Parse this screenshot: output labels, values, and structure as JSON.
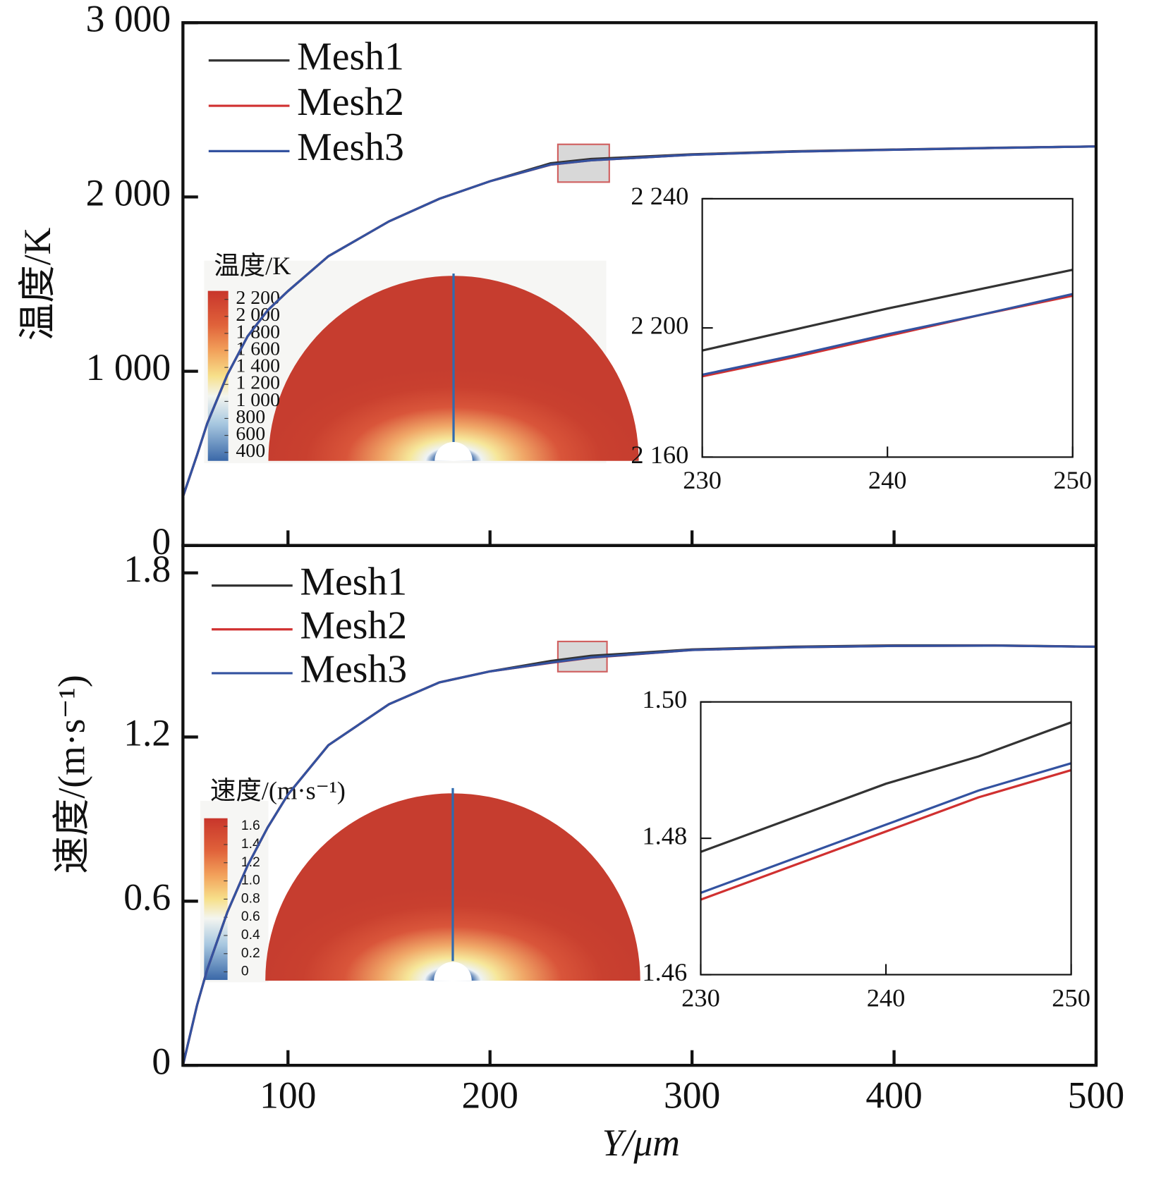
{
  "chart_data": [
    {
      "type": "line",
      "ylabel": "温度/K",
      "legend": "upper left",
      "x": [
        48,
        55,
        60,
        70,
        80,
        90,
        100,
        120,
        150,
        175,
        200,
        230,
        250,
        300,
        350,
        400,
        450,
        500
      ],
      "series": [
        {
          "name": "Mesh1",
          "color": "#333333",
          "values": [
            280,
            520,
            700,
            980,
            1200,
            1350,
            1460,
            1660,
            1860,
            1990,
            2090,
            2193,
            2218,
            2245,
            2262,
            2272,
            2282,
            2290
          ]
        },
        {
          "name": "Mesh2",
          "color": "#d03030",
          "values": [
            280,
            520,
            700,
            980,
            1200,
            1350,
            1460,
            1660,
            1860,
            1990,
            2090,
            2185,
            2210,
            2242,
            2260,
            2271,
            2281,
            2290
          ]
        },
        {
          "name": "Mesh3",
          "color": "#3352a0",
          "values": [
            280,
            520,
            700,
            980,
            1200,
            1350,
            1460,
            1660,
            1860,
            1990,
            2090,
            2186,
            2210,
            2242,
            2260,
            2271,
            2281,
            2290
          ]
        }
      ],
      "xlim": [
        48,
        500
      ],
      "xticks": [
        100,
        200,
        300,
        400,
        500
      ],
      "ylim": [
        0,
        3000
      ],
      "yticks": [
        0,
        {
          "value": 1000,
          "label": "1 000"
        },
        {
          "value": 2000,
          "label": "2 000"
        },
        {
          "value": 3000,
          "label": "3 000"
        }
      ],
      "colorbar": {
        "title": "温度/K",
        "ticks": [
          {
            "value": 2200,
            "label": "2 200"
          },
          {
            "value": 2000,
            "label": "2 000"
          },
          {
            "value": 1800,
            "label": "1 800"
          },
          {
            "value": 1600,
            "label": "1 600"
          },
          {
            "value": 1400,
            "label": "1 400"
          },
          {
            "value": 1200,
            "label": "1 200"
          },
          {
            "value": 1000,
            "label": "1 000"
          },
          800,
          600,
          400
        ]
      }
    },
    {
      "type": "line",
      "x": [
        230,
        235,
        240,
        245,
        250
      ],
      "series": [
        {
          "color": "#333333",
          "values": [
            2193,
            2199.5,
            2206,
            2212,
            2218
          ]
        },
        {
          "color": "#d03030",
          "values": [
            2185,
            2191,
            2197.5,
            2204,
            2210
          ]
        },
        {
          "color": "#3352a0",
          "values": [
            2185.5,
            2191.5,
            2198,
            2204,
            2210.5
          ]
        }
      ],
      "xlim": [
        230,
        250
      ],
      "xticks": [
        230,
        240,
        250
      ],
      "ylim": [
        2160,
        2240
      ],
      "yticks": [
        {
          "value": 2160,
          "label": "2 160"
        },
        {
          "value": 2200,
          "label": "2 200"
        },
        {
          "value": 2240,
          "label": "2 240"
        }
      ]
    },
    {
      "type": "line",
      "ylabel": "速度/(m·s⁻¹)",
      "xlabel": "Y/μm",
      "legend": "upper left",
      "x": [
        48,
        55,
        60,
        70,
        80,
        90,
        100,
        120,
        150,
        175,
        200,
        230,
        250,
        300,
        350,
        400,
        450,
        500
      ],
      "series": [
        {
          "name": "Mesh1",
          "color": "#333333",
          "values": [
            0,
            0.22,
            0.35,
            0.56,
            0.73,
            0.87,
            0.99,
            1.17,
            1.32,
            1.4,
            1.44,
            1.478,
            1.497,
            1.52,
            1.53,
            1.535,
            1.535,
            1.53
          ]
        },
        {
          "name": "Mesh2",
          "color": "#d03030",
          "values": [
            0,
            0.22,
            0.35,
            0.56,
            0.73,
            0.87,
            0.99,
            1.17,
            1.32,
            1.4,
            1.44,
            1.471,
            1.49,
            1.518,
            1.528,
            1.533,
            1.534,
            1.53
          ]
        },
        {
          "name": "Mesh3",
          "color": "#3352a0",
          "values": [
            0,
            0.22,
            0.35,
            0.56,
            0.73,
            0.87,
            0.99,
            1.17,
            1.32,
            1.4,
            1.44,
            1.472,
            1.491,
            1.518,
            1.528,
            1.533,
            1.534,
            1.53
          ]
        }
      ],
      "xlim": [
        48,
        500
      ],
      "xticks": [
        100,
        200,
        300,
        400,
        500
      ],
      "ylim": [
        0,
        1.9
      ],
      "yticks": [
        0,
        0.6,
        1.2,
        1.8
      ],
      "colorbar": {
        "title": "速度/(m·s⁻¹)",
        "ticks": [
          1.6,
          1.4,
          1.2,
          {
            "value": 1,
            "label": "1.0"
          },
          0.8,
          0.6,
          0.4,
          0.2,
          0
        ]
      }
    },
    {
      "type": "line",
      "x": [
        230,
        235,
        240,
        245,
        250
      ],
      "series": [
        {
          "color": "#333333",
          "values": [
            1.478,
            1.483,
            1.488,
            1.492,
            1.497
          ]
        },
        {
          "color": "#d03030",
          "values": [
            1.471,
            1.476,
            1.481,
            1.486,
            1.49
          ]
        },
        {
          "color": "#3352a0",
          "values": [
            1.472,
            1.477,
            1.482,
            1.487,
            1.491
          ]
        }
      ],
      "xlim": [
        230,
        250
      ],
      "xticks": [
        230,
        240,
        250
      ],
      "ylim": [
        1.46,
        1.5
      ],
      "yticks": [
        1.46,
        1.48,
        {
          "value": 1.5,
          "label": "1.50"
        }
      ]
    }
  ]
}
